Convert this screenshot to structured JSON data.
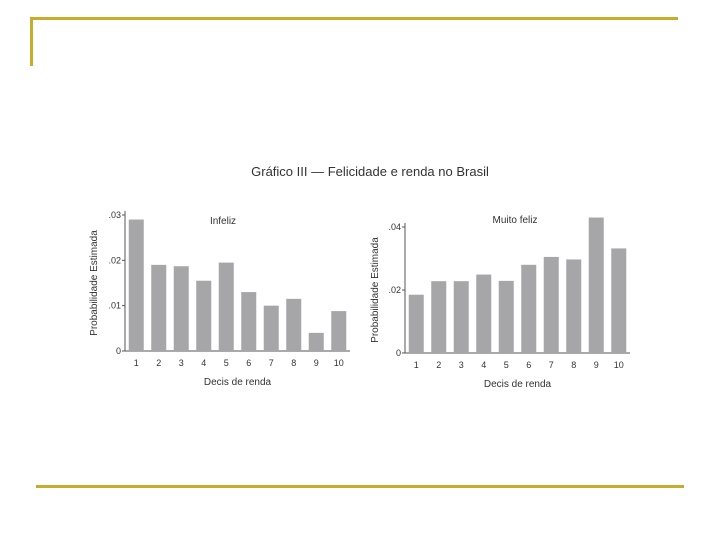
{
  "title": "Gráfico III — Felicidade e renda no Brasil",
  "colors": {
    "bar": "#a6a6a8",
    "accent": "#c8ac2c",
    "axis": "#555555"
  },
  "chart_data": [
    {
      "type": "bar",
      "title": "Infeliz",
      "xlabel": "Decis de renda",
      "ylabel": "Probabilidade Estimada",
      "categories": [
        "1",
        "2",
        "3",
        "4",
        "5",
        "6",
        "7",
        "8",
        "9",
        "10"
      ],
      "values": [
        0.029,
        0.019,
        0.0187,
        0.0155,
        0.0195,
        0.013,
        0.01,
        0.0115,
        0.004,
        0.0088
      ],
      "ylim": [
        0,
        0.03
      ],
      "yticks": [
        0,
        0.01,
        0.02,
        0.03
      ],
      "yticklabels": [
        "0",
        ".01",
        ".02",
        ".03"
      ],
      "grid": false
    },
    {
      "type": "bar",
      "title": "Muito feliz",
      "xlabel": "Decis de renda",
      "ylabel": "Probabilidade Estimada",
      "categories": [
        "1",
        "2",
        "3",
        "4",
        "5",
        "6",
        "7",
        "8",
        "9",
        "10"
      ],
      "values": [
        0.0185,
        0.0228,
        0.0228,
        0.0249,
        0.0229,
        0.028,
        0.0305,
        0.0297,
        0.043,
        0.0332
      ],
      "ylim": [
        0,
        0.04
      ],
      "yticks": [
        0,
        0.02,
        0.04
      ],
      "yticklabels": [
        "0",
        ".02",
        ".04"
      ],
      "grid": false
    }
  ]
}
